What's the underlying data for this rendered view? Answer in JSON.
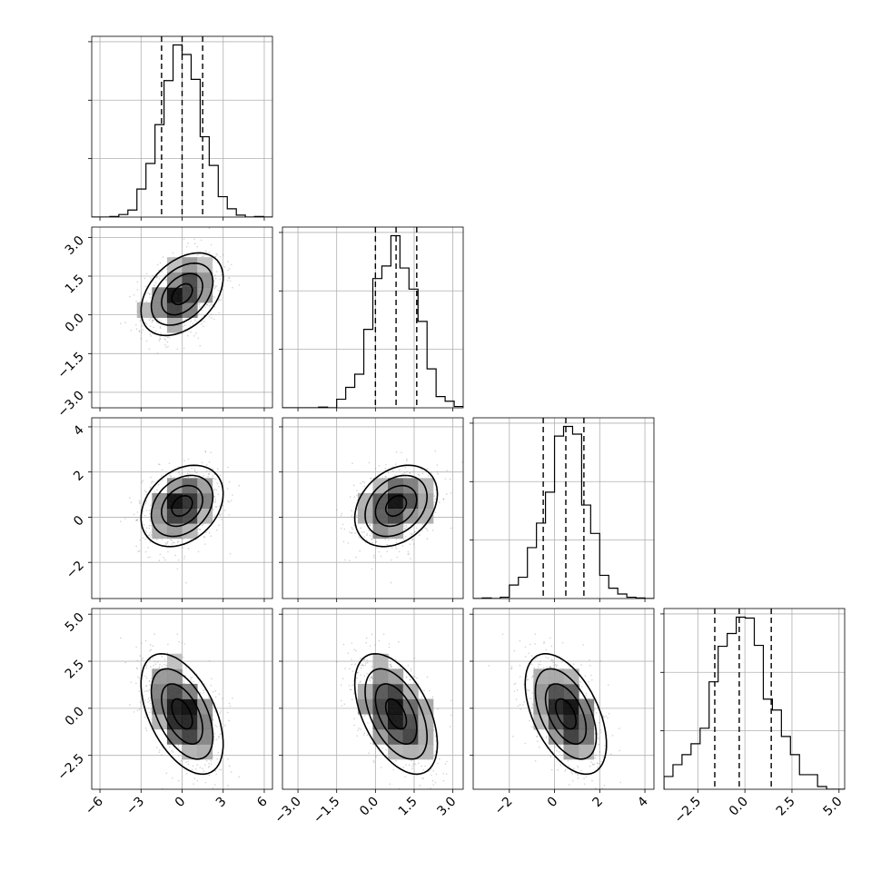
{
  "chart_data": {
    "type": "corner",
    "n_params": 4,
    "parameters": [
      {
        "id": "p0",
        "center": 0.0,
        "spread": 1.5,
        "range": [
          -6.6,
          6.6
        ],
        "tick_labels": [
          "−6",
          "−3",
          "0",
          "3",
          "6"
        ],
        "ticks": [
          -6,
          -3,
          0,
          3,
          6
        ],
        "quantiles": [
          -1.5,
          0.0,
          1.5
        ]
      },
      {
        "id": "p1",
        "center": 0.8,
        "spread": 0.8,
        "range": [
          -3.6,
          3.4
        ],
        "tick_labels": [
          "−3.0",
          "−1.5",
          "0.0",
          "1.5",
          "3.0"
        ],
        "ticks": [
          -3.0,
          -1.5,
          0.0,
          1.5,
          3.0
        ],
        "quantiles": [
          0.0,
          0.8,
          1.6
        ]
      },
      {
        "id": "p2",
        "center": 0.5,
        "spread": 0.9,
        "range": [
          -3.6,
          4.4
        ],
        "tick_labels": [
          "−2",
          "0",
          "2",
          "4"
        ],
        "ticks": [
          -2,
          0,
          2,
          4
        ],
        "quantiles": [
          -0.5,
          0.5,
          1.3
        ]
      },
      {
        "id": "p3",
        "center": -0.3,
        "spread": 1.6,
        "range": [
          -4.3,
          5.3
        ],
        "tick_labels": [
          "−2.5",
          "0.0",
          "2.5",
          "5.0"
        ],
        "ticks": [
          -2.5,
          0.0,
          2.5,
          5.0
        ],
        "quantiles": [
          -1.6,
          -0.3,
          1.4
        ]
      }
    ],
    "correlations": [
      [
        1.0,
        0.4,
        0.3,
        -0.5
      ],
      [
        0.4,
        1.0,
        0.3,
        -0.5
      ],
      [
        0.3,
        0.3,
        1.0,
        -0.5
      ],
      [
        -0.5,
        -0.5,
        -0.5,
        1.0
      ]
    ],
    "contour_levels": [
      0.39,
      0.86,
      0.99
    ],
    "grid": true,
    "colors": {
      "points": "#808080",
      "lines": "#000000",
      "grid": "#b0b0b0"
    }
  }
}
